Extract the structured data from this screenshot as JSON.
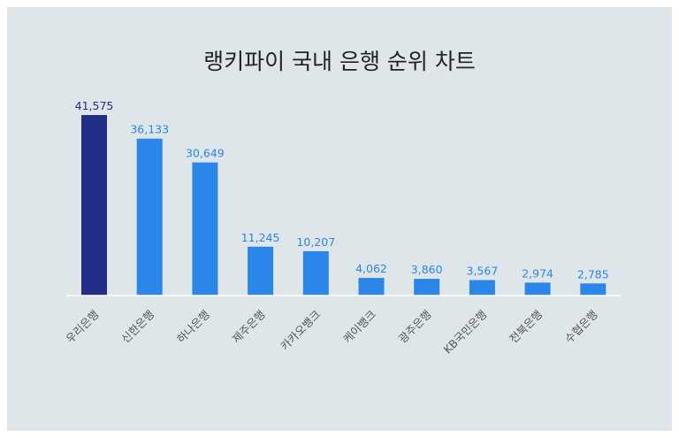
{
  "chart_data": {
    "type": "bar",
    "title": "랭키파이 국내 은행 순위 차트",
    "categories": [
      "우리은행",
      "신한은행",
      "하나은행",
      "제주은행",
      "카카오뱅크",
      "케이뱅크",
      "광주은행",
      "KB국민은행",
      "전북은행",
      "수협은행"
    ],
    "values": [
      41575,
      36133,
      30649,
      11245,
      10207,
      4062,
      3860,
      3567,
      2974,
      2785
    ],
    "value_labels": [
      "41,575",
      "36,133",
      "30,649",
      "11,245",
      "10,207",
      "4,062",
      "3,860",
      "3,567",
      "2,974",
      "2,785"
    ],
    "xlabel": "",
    "ylabel": "",
    "ylim": [
      0,
      41575
    ],
    "grid": false,
    "legend": "none",
    "colors": {
      "highlight_bar": "#232e86",
      "bar": "#2b86ea",
      "highlight_label": "#232e86",
      "label": "#2b86ea",
      "axis": "#ffffff",
      "background": "#dee6e9"
    }
  }
}
